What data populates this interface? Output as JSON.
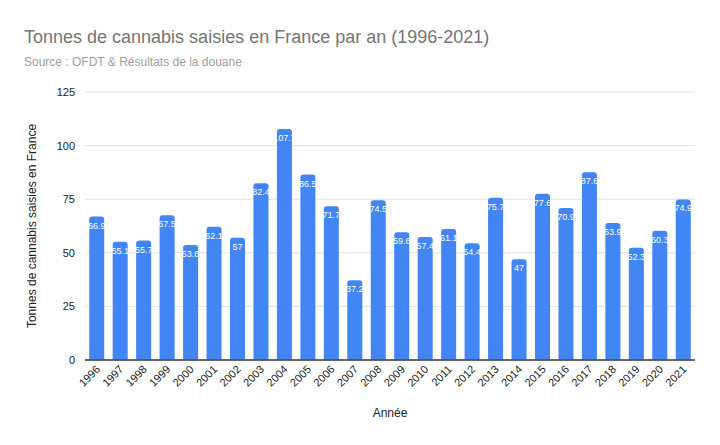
{
  "chart_data": {
    "type": "bar",
    "title": "Tonnes de cannabis saisies en France par an (1996-2021)",
    "subtitle": "Source : OFDT & Résultats de la douane",
    "x_label": "Année",
    "y_label": "Tonnes de cannabis saisies en France",
    "categories": [
      "1996",
      "1997",
      "1998",
      "1999",
      "2000",
      "2001",
      "2002",
      "2003",
      "2004",
      "2005",
      "2006",
      "2007",
      "2008",
      "2009",
      "2010",
      "2011",
      "2012",
      "2013",
      "2014",
      "2015",
      "2016",
      "2017",
      "2018",
      "2019",
      "2020",
      "2021"
    ],
    "values": [
      66.9,
      55.1,
      55.7,
      67.5,
      53.6,
      62.1,
      57,
      82.4,
      107.7,
      86.5,
      71.7,
      37.2,
      74.5,
      59.6,
      57.4,
      61.1,
      54.4,
      75.7,
      47,
      77.6,
      70.9,
      87.6,
      63.9,
      52.3,
      60.3,
      74.9
    ],
    "color": "#4285f4",
    "ylim": [
      0,
      125
    ],
    "yticks": [
      0,
      25,
      50,
      75,
      100,
      125
    ],
    "grid": true,
    "data_labels": true
  }
}
